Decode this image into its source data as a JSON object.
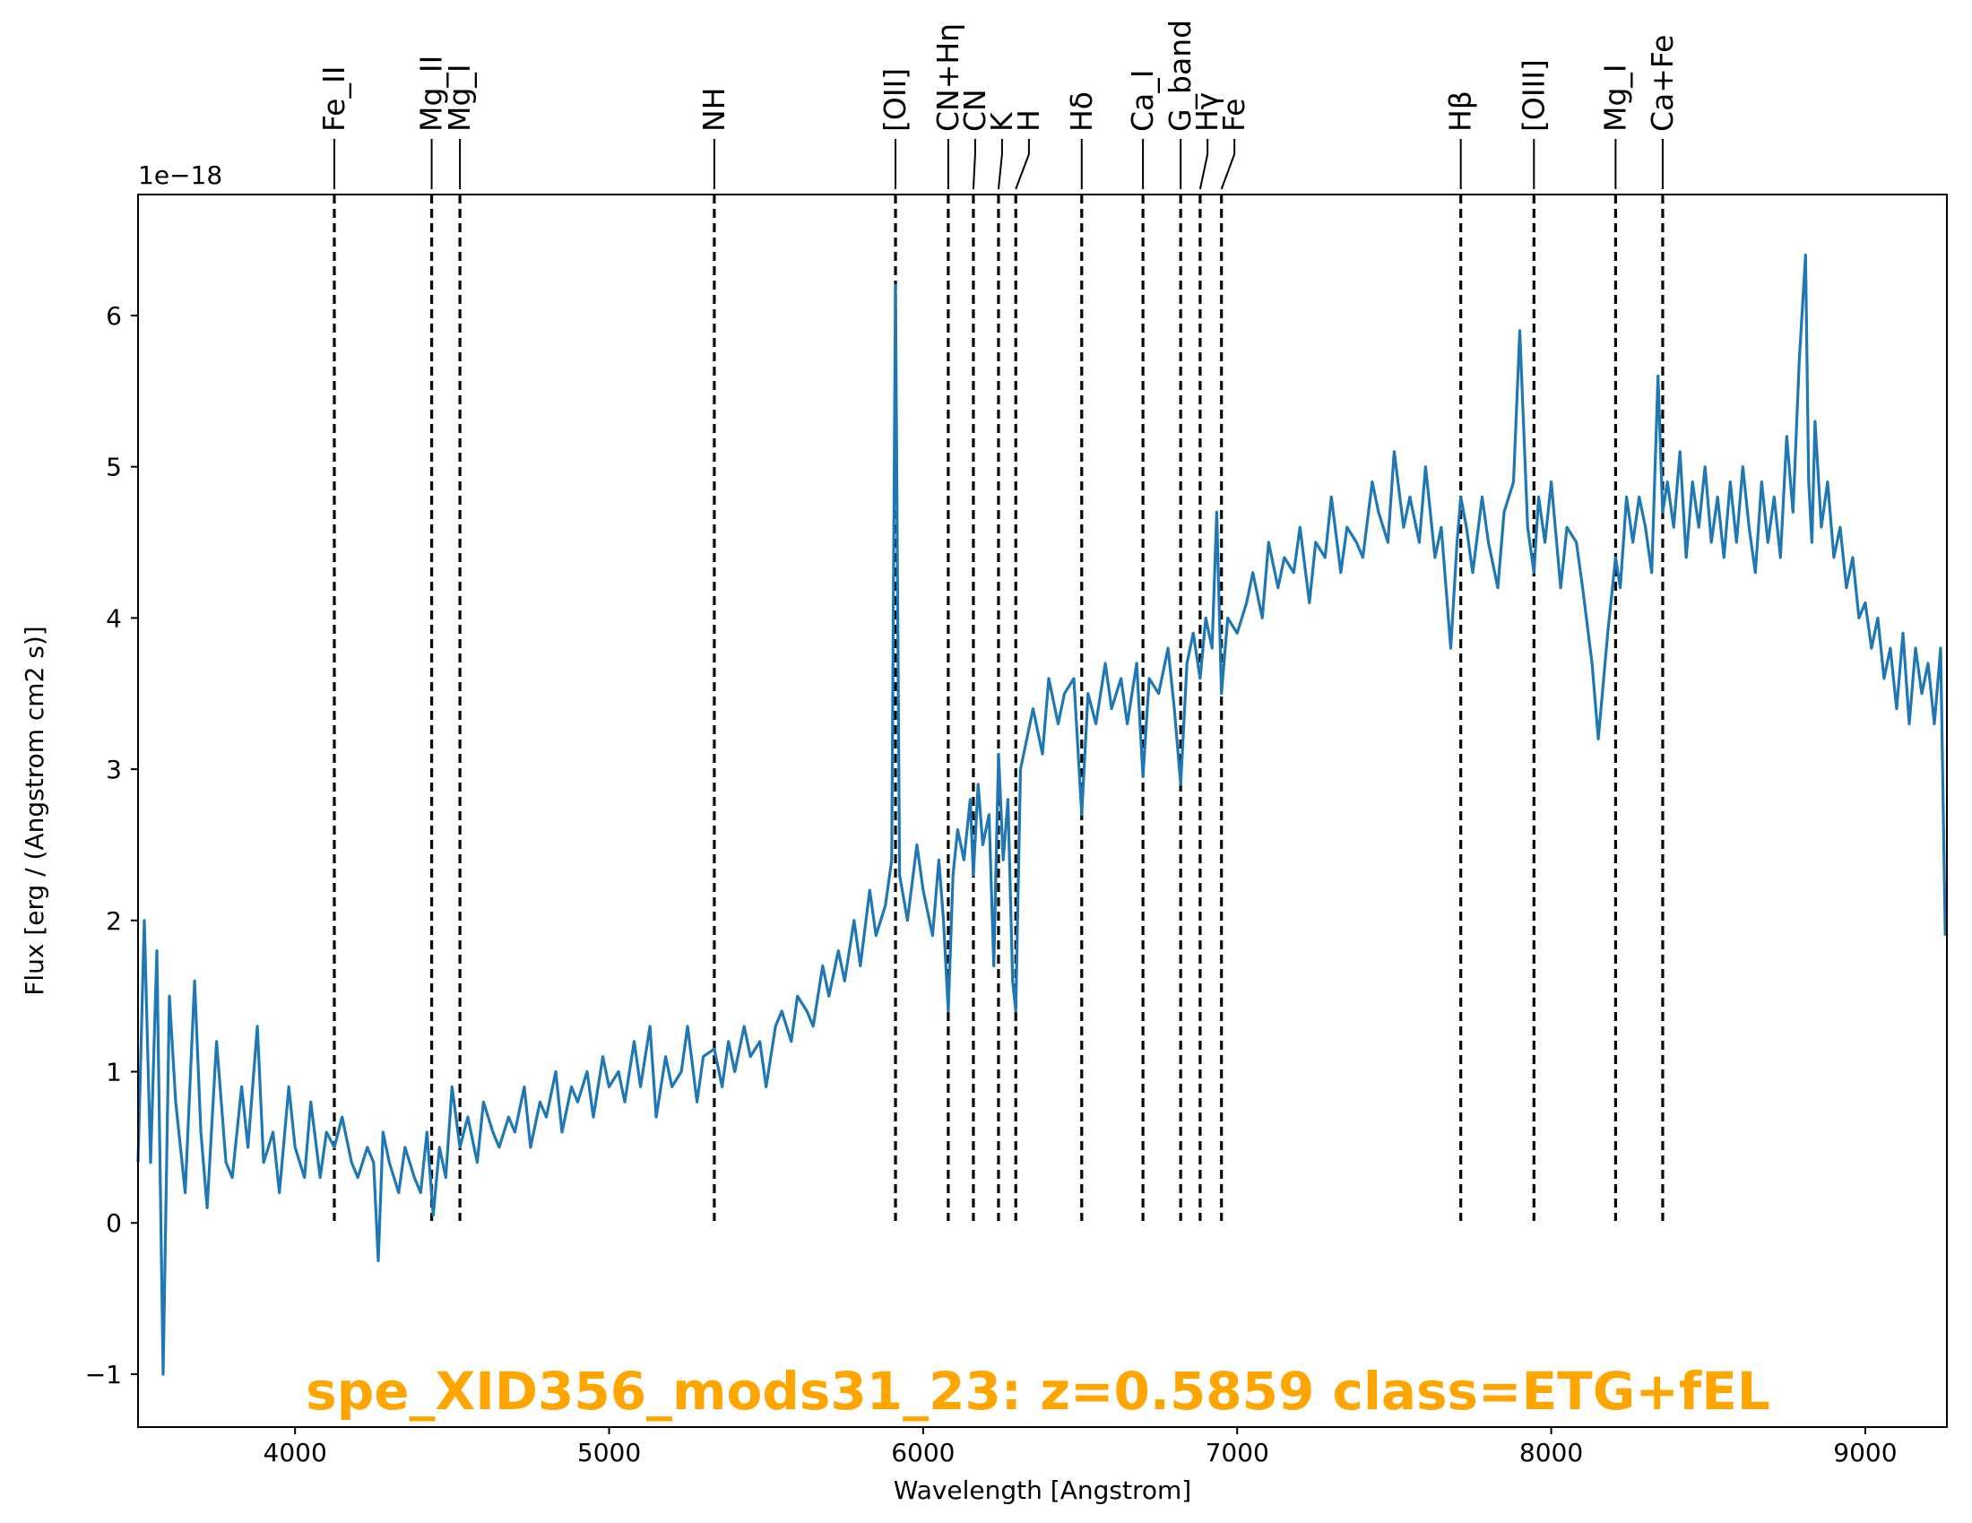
{
  "chart_data": {
    "type": "line",
    "title": "spe_XID356_mods31_23: z=0.5859 class=ETG+fEL",
    "xlabel": "Wavelength [Angstrom]",
    "ylabel": "Flux [erg / (Angstrom cm2 s)]",
    "y_offset_label": "1e−18",
    "xlim": [
      3500,
      9260
    ],
    "ylim": [
      -1.35,
      6.8
    ],
    "x_ticks": [
      4000,
      5000,
      6000,
      7000,
      8000,
      9000
    ],
    "y_ticks": [
      -1,
      0,
      1,
      2,
      3,
      4,
      5,
      6
    ],
    "y_tick_labels": [
      "−1",
      "0",
      "1",
      "2",
      "3",
      "4",
      "5",
      "6"
    ],
    "grid": false,
    "colors": {
      "spectrum": "#1f77b4",
      "lines": "#000000",
      "title": "#ffa500"
    },
    "spectral_lines": [
      {
        "label": "Fe_II",
        "x": 4125
      },
      {
        "label": "Mg_II",
        "x": 4435
      },
      {
        "label": "Mg_I",
        "x": 4525
      },
      {
        "label": "NH",
        "x": 5335
      },
      {
        "label": "[OII]",
        "x": 5912
      },
      {
        "label": "CN+Hη",
        "x": 6080
      },
      {
        "label": "CN",
        "x": 6160
      },
      {
        "label": "K",
        "x": 6240
      },
      {
        "label": "H",
        "x": 6295
      },
      {
        "label": "Hδ",
        "x": 6505
      },
      {
        "label": "Ca_I",
        "x": 6700
      },
      {
        "label": "G_band",
        "x": 6820
      },
      {
        "label": "Hγ",
        "x": 6882
      },
      {
        "label": "Fe",
        "x": 6950
      },
      {
        "label": "Hβ",
        "x": 7712
      },
      {
        "label": "[OIII]",
        "x": 7945
      },
      {
        "label": "Mg_I",
        "x": 8205
      },
      {
        "label": "Ca+Fe",
        "x": 8355
      }
    ],
    "series": [
      {
        "x": [
          3500,
          3520,
          3540,
          3560,
          3580,
          3600,
          3620,
          3650,
          3680,
          3700,
          3720,
          3750,
          3780,
          3800,
          3830,
          3850,
          3880,
          3900,
          3930,
          3950,
          3980,
          4000,
          4030,
          4050,
          4080,
          4100,
          4125,
          4150,
          4180,
          4200,
          4230,
          4250,
          4265,
          4280,
          4300,
          4330,
          4350,
          4380,
          4400,
          4420,
          4440,
          4460,
          4480,
          4500,
          4525,
          4550,
          4580,
          4600,
          4630,
          4650,
          4680,
          4700,
          4730,
          4750,
          4780,
          4800,
          4830,
          4850,
          4880,
          4900,
          4930,
          4950,
          4980,
          5000,
          5030,
          5050,
          5080,
          5100,
          5130,
          5150,
          5180,
          5200,
          5230,
          5250,
          5280,
          5300,
          5335,
          5360,
          5380,
          5400,
          5430,
          5450,
          5480,
          5500,
          5530,
          5550,
          5580,
          5600,
          5630,
          5650,
          5680,
          5700,
          5730,
          5750,
          5780,
          5800,
          5830,
          5850,
          5880,
          5900,
          5912,
          5925,
          5950,
          5980,
          6000,
          6030,
          6050,
          6065,
          6080,
          6095,
          6110,
          6130,
          6150,
          6160,
          6175,
          6190,
          6210,
          6225,
          6240,
          6255,
          6270,
          6285,
          6295,
          6310,
          6330,
          6350,
          6380,
          6400,
          6430,
          6450,
          6480,
          6505,
          6525,
          6550,
          6580,
          6600,
          6630,
          6650,
          6680,
          6700,
          6720,
          6750,
          6780,
          6800,
          6820,
          6840,
          6860,
          6882,
          6900,
          6920,
          6935,
          6950,
          6970,
          7000,
          7030,
          7050,
          7080,
          7100,
          7130,
          7150,
          7180,
          7200,
          7230,
          7250,
          7280,
          7300,
          7330,
          7350,
          7380,
          7400,
          7430,
          7450,
          7480,
          7500,
          7530,
          7550,
          7580,
          7600,
          7630,
          7650,
          7680,
          7700,
          7712,
          7730,
          7750,
          7780,
          7800,
          7830,
          7850,
          7880,
          7900,
          7925,
          7945,
          7960,
          7980,
          8000,
          8030,
          8050,
          8080,
          8100,
          8130,
          8150,
          8180,
          8205,
          8220,
          8240,
          8260,
          8280,
          8300,
          8320,
          8340,
          8355,
          8370,
          8390,
          8410,
          8430,
          8450,
          8470,
          8490,
          8510,
          8530,
          8550,
          8570,
          8590,
          8610,
          8630,
          8650,
          8670,
          8690,
          8710,
          8730,
          8750,
          8770,
          8790,
          8810,
          8820,
          8830,
          8840,
          8860,
          8880,
          8900,
          8920,
          8940,
          8960,
          8980,
          9000,
          9020,
          9040,
          9060,
          9080,
          9100,
          9120,
          9140,
          9160,
          9180,
          9200,
          9220,
          9240,
          9255
        ],
        "y": [
          0.4,
          2.0,
          0.4,
          1.8,
          -1.0,
          1.5,
          0.8,
          0.2,
          1.6,
          0.6,
          0.1,
          1.2,
          0.4,
          0.3,
          0.9,
          0.5,
          1.3,
          0.4,
          0.6,
          0.2,
          0.9,
          0.5,
          0.3,
          0.8,
          0.3,
          0.6,
          0.5,
          0.7,
          0.4,
          0.3,
          0.5,
          0.4,
          -0.25,
          0.6,
          0.4,
          0.2,
          0.5,
          0.3,
          0.2,
          0.6,
          0.05,
          0.5,
          0.3,
          0.9,
          0.5,
          0.7,
          0.4,
          0.8,
          0.6,
          0.5,
          0.7,
          0.6,
          0.9,
          0.5,
          0.8,
          0.7,
          1.0,
          0.6,
          0.9,
          0.8,
          1.0,
          0.7,
          1.1,
          0.9,
          1.0,
          0.8,
          1.2,
          0.9,
          1.3,
          0.7,
          1.1,
          0.9,
          1.0,
          1.3,
          0.8,
          1.1,
          1.15,
          0.9,
          1.2,
          1.0,
          1.3,
          1.1,
          1.2,
          0.9,
          1.3,
          1.4,
          1.2,
          1.5,
          1.4,
          1.3,
          1.7,
          1.5,
          1.8,
          1.6,
          2.0,
          1.7,
          2.2,
          1.9,
          2.1,
          2.4,
          6.2,
          2.3,
          2.0,
          2.5,
          2.2,
          1.9,
          2.4,
          2.0,
          1.4,
          2.3,
          2.6,
          2.4,
          2.8,
          2.3,
          2.9,
          2.5,
          2.7,
          1.7,
          3.1,
          2.4,
          2.8,
          1.6,
          1.4,
          3.0,
          3.2,
          3.4,
          3.1,
          3.6,
          3.3,
          3.5,
          3.6,
          2.7,
          3.5,
          3.3,
          3.7,
          3.4,
          3.6,
          3.3,
          3.7,
          2.95,
          3.6,
          3.5,
          3.8,
          3.4,
          2.9,
          3.7,
          3.9,
          3.6,
          4.0,
          3.8,
          4.7,
          3.5,
          4.0,
          3.9,
          4.1,
          4.3,
          4.0,
          4.5,
          4.2,
          4.4,
          4.3,
          4.6,
          4.1,
          4.5,
          4.4,
          4.8,
          4.3,
          4.6,
          4.5,
          4.4,
          4.9,
          4.7,
          4.5,
          5.1,
          4.6,
          4.8,
          4.5,
          5.0,
          4.4,
          4.6,
          3.8,
          4.5,
          4.8,
          4.6,
          4.3,
          4.8,
          4.5,
          4.2,
          4.7,
          4.9,
          5.9,
          4.6,
          4.3,
          4.8,
          4.5,
          4.9,
          4.2,
          4.6,
          4.5,
          4.2,
          3.7,
          3.2,
          3.9,
          4.4,
          4.2,
          4.8,
          4.5,
          4.8,
          4.6,
          4.3,
          5.6,
          4.7,
          4.9,
          4.6,
          5.1,
          4.4,
          4.9,
          4.6,
          5.0,
          4.5,
          4.8,
          4.4,
          4.9,
          4.5,
          5.0,
          4.6,
          4.3,
          4.9,
          4.5,
          4.8,
          4.4,
          5.2,
          4.7,
          5.7,
          6.4,
          4.9,
          4.5,
          5.3,
          4.6,
          4.9,
          4.4,
          4.6,
          4.2,
          4.4,
          4.0,
          4.1,
          3.8,
          4.0,
          3.6,
          3.8,
          3.4,
          3.9,
          3.3,
          3.8,
          3.5,
          3.7,
          3.3,
          3.8,
          1.9
        ]
      }
    ]
  }
}
